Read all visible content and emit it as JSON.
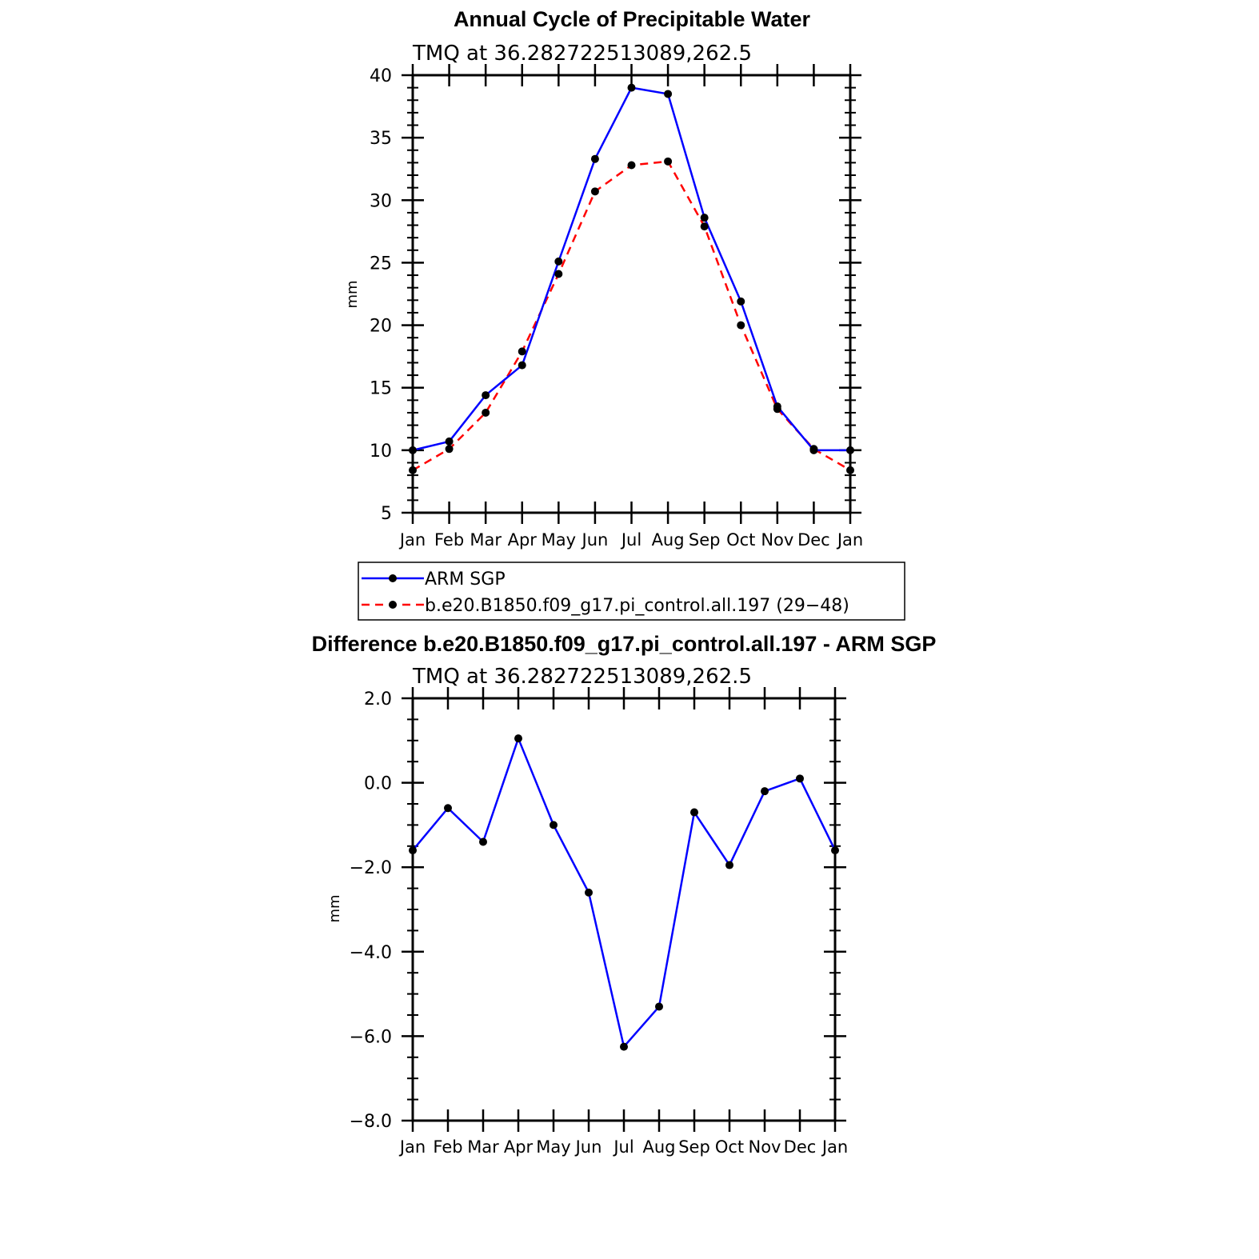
{
  "chart_data": [
    {
      "type": "line",
      "title": "Annual Cycle of Precipitable Water",
      "subtitle": "TMQ at 36.282722513089,262.5",
      "xlabel": "",
      "ylabel": "mm",
      "categories": [
        "Jan",
        "Feb",
        "Mar",
        "Apr",
        "May",
        "Jun",
        "Jul",
        "Aug",
        "Sep",
        "Oct",
        "Nov",
        "Dec",
        "Jan"
      ],
      "ylim": [
        5,
        40
      ],
      "yticks": [
        5,
        10,
        15,
        20,
        25,
        30,
        35,
        40
      ],
      "ytick_labels": [
        "5",
        "10",
        "15",
        "20",
        "25",
        "30",
        "35",
        "40"
      ],
      "grid": false,
      "legend_position": "bottom",
      "series": [
        {
          "name": "ARM SGP",
          "color": "#0000ff",
          "dash": "solid",
          "values": [
            10.0,
            10.7,
            14.4,
            16.8,
            25.1,
            33.3,
            39.0,
            38.5,
            28.6,
            21.9,
            13.5,
            10.0,
            10.0
          ]
        },
        {
          "name": "b.e20.B1850.f09_g17.pi_control.all.197 (29−48)",
          "color": "#ff0000",
          "dash": "dashed",
          "values": [
            8.4,
            10.1,
            13.0,
            17.9,
            24.1,
            30.7,
            32.8,
            33.1,
            27.9,
            20.0,
            13.3,
            10.1,
            8.4
          ]
        }
      ]
    },
    {
      "type": "line",
      "title": "Difference b.e20.B1850.f09_g17.pi_control.all.197 - ARM SGP",
      "subtitle": "TMQ at 36.282722513089,262.5",
      "xlabel": "",
      "ylabel": "mm",
      "categories": [
        "Jan",
        "Feb",
        "Mar",
        "Apr",
        "May",
        "Jun",
        "Jul",
        "Aug",
        "Sep",
        "Oct",
        "Nov",
        "Dec",
        "Jan"
      ],
      "ylim": [
        -8,
        2
      ],
      "yticks": [
        -8,
        -6,
        -4,
        -2,
        0,
        2
      ],
      "ytick_labels": [
        "−8.0",
        "−6.0",
        "−4.0",
        "−2.0",
        "0.0",
        "2.0"
      ],
      "grid": false,
      "series": [
        {
          "color": "#0000ff",
          "dash": "solid",
          "values": [
            -1.6,
            -0.6,
            -1.4,
            1.05,
            -1.0,
            -2.6,
            -6.25,
            -5.3,
            -0.7,
            -1.95,
            -0.2,
            0.1,
            -1.6
          ]
        }
      ]
    }
  ]
}
